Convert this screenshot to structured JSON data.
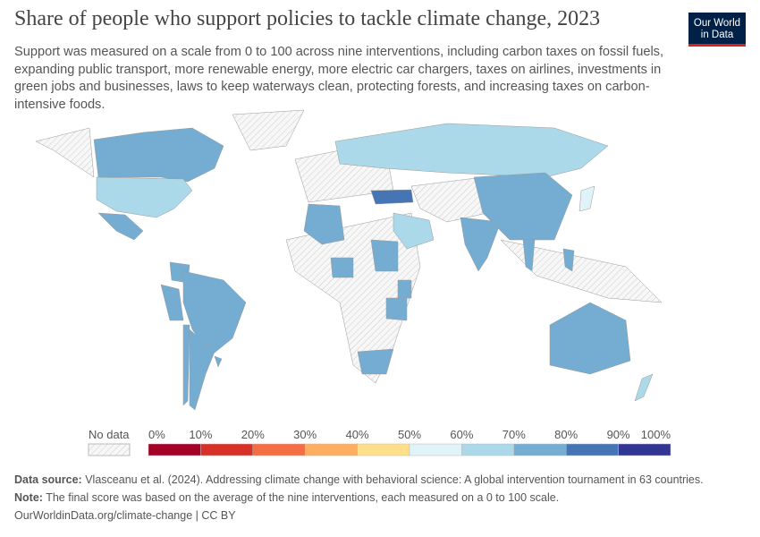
{
  "title": "Share of people who support policies to tackle climate change, 2023",
  "subtitle": "Support was measured on a scale from 0 to 100 across nine interventions, including carbon taxes on fossil fuels, expanding public transport, more renewable energy, more electric car chargers, taxes on airlines, investments in green jobs and businesses, laws to keep waterways clean, protecting forests, and increasing taxes on carbon-intensive foods.",
  "logo": {
    "line1": "Our World",
    "line2": "in Data"
  },
  "chart_data": {
    "type": "choropleth",
    "legend": {
      "no_data_label": "No data",
      "ticks": [
        "0%",
        "10%",
        "20%",
        "30%",
        "40%",
        "50%",
        "60%",
        "70%",
        "80%",
        "90%",
        "100%"
      ],
      "colors": [
        "#a50026",
        "#d73027",
        "#f46d43",
        "#fdae61",
        "#fee08b",
        "#e0f3f8",
        "#abd9e9",
        "#74add1",
        "#4575b4",
        "#313695"
      ]
    },
    "no_data_color": "#f2f2f2",
    "countries": [
      {
        "name": "Canada",
        "bin": "70-80%"
      },
      {
        "name": "United States",
        "bin": "60-70%"
      },
      {
        "name": "Mexico",
        "bin": "70-80%"
      },
      {
        "name": "Colombia",
        "bin": "70-80%"
      },
      {
        "name": "Peru",
        "bin": "70-80%"
      },
      {
        "name": "Brazil",
        "bin": "70-80%"
      },
      {
        "name": "Chile",
        "bin": "70-80%"
      },
      {
        "name": "Argentina",
        "bin": "70-80%"
      },
      {
        "name": "Uruguay",
        "bin": "70-80%"
      },
      {
        "name": "Russia",
        "bin": "60-70%"
      },
      {
        "name": "Turkey",
        "bin": "80-90%"
      },
      {
        "name": "Algeria",
        "bin": "70-80%"
      },
      {
        "name": "Nigeria",
        "bin": "70-80%"
      },
      {
        "name": "Sudan",
        "bin": "70-80%"
      },
      {
        "name": "Kenya",
        "bin": "70-80%"
      },
      {
        "name": "Tanzania",
        "bin": "70-80%"
      },
      {
        "name": "South Africa",
        "bin": "70-80%"
      },
      {
        "name": "Saudi Arabia",
        "bin": "60-70%"
      },
      {
        "name": "India",
        "bin": "70-80%"
      },
      {
        "name": "China",
        "bin": "70-80%"
      },
      {
        "name": "Japan",
        "bin": "50-60%"
      },
      {
        "name": "Thailand",
        "bin": "70-80%"
      },
      {
        "name": "Philippines",
        "bin": "70-80%"
      },
      {
        "name": "Australia",
        "bin": "70-80%"
      },
      {
        "name": "New Zealand",
        "bin": "60-70%"
      }
    ]
  },
  "footer": {
    "source_label": "Data source:",
    "source": "Vlasceanu et al. (2024). Addressing climate change with behavioral science: A global intervention tournament in 63 countries.",
    "note_label": "Note:",
    "note": "The final score was based on the average of the nine interventions, each measured on a 0 to 100 scale.",
    "link": "OurWorldinData.org/climate-change | CC BY"
  }
}
